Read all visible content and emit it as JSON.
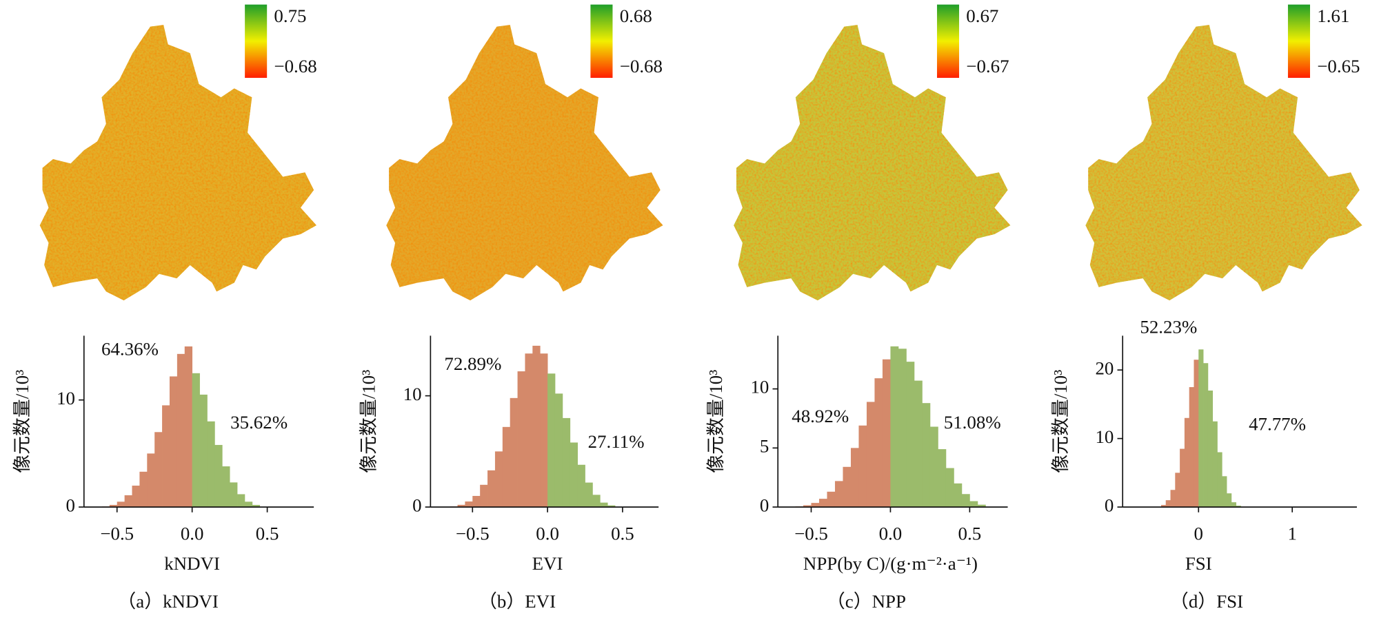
{
  "chart_data": [
    {
      "type": "histogram",
      "caption": "（a）kNDVI",
      "xlabel": "kNDVI",
      "ylabel": "像元数量/10³",
      "annotations": [
        "64.36%",
        "35.62%"
      ],
      "bins": [
        -0.6,
        -0.55,
        -0.5,
        -0.45,
        -0.4,
        -0.35,
        -0.3,
        -0.25,
        -0.2,
        -0.15,
        -0.1,
        -0.05,
        0,
        0.05,
        0.1,
        0.15,
        0.2,
        0.25,
        0.3,
        0.35,
        0.4,
        0.45
      ],
      "values": [
        0.05,
        0.2,
        0.5,
        1.1,
        2.0,
        3.3,
        5.0,
        7.0,
        9.5,
        12.2,
        14.3,
        15.0,
        12.5,
        10.5,
        8.0,
        5.8,
        3.8,
        2.3,
        1.2,
        0.5,
        0.2
      ],
      "colors": [
        "#d4896a",
        "#9bbb6b"
      ],
      "xlim": [
        -0.72,
        0.81
      ],
      "xticks": [
        {
          "value": -0.5,
          "label": "−0.5"
        },
        {
          "value": 0,
          "label": "0.0"
        },
        0.5
      ],
      "ylim": [
        0,
        16
      ],
      "yticks": [
        0,
        10
      ],
      "colorbar": {
        "ticks": [
          0.75,
          {
            "value": -0.68,
            "label": "−0.68"
          }
        ],
        "colors": [
          "#1f9e2a",
          "#f2ef00",
          "#ff1e00"
        ]
      }
    },
    {
      "type": "histogram",
      "caption": "（b）EVI",
      "xlabel": "EVI",
      "ylabel": "像元数量/10³",
      "annotations": [
        "72.89%",
        "27.11%"
      ],
      "bins": [
        -0.65,
        -0.6,
        -0.55,
        -0.5,
        -0.45,
        -0.4,
        -0.35,
        -0.3,
        -0.25,
        -0.2,
        -0.15,
        -0.1,
        -0.05,
        0,
        0.05,
        0.1,
        0.15,
        0.2,
        0.25,
        0.3,
        0.35,
        0.4,
        0.45
      ],
      "values": [
        0.05,
        0.2,
        0.5,
        1.0,
        2.0,
        3.3,
        5.0,
        7.2,
        9.8,
        12.2,
        13.8,
        14.5,
        13.8,
        12.0,
        10.2,
        8.0,
        5.8,
        3.8,
        2.2,
        1.1,
        0.4,
        0.15
      ],
      "colors": [
        "#d4896a",
        "#9bbb6b"
      ],
      "xlim": [
        -0.78,
        0.74
      ],
      "xticks": [
        {
          "value": -0.5,
          "label": "−0.5"
        },
        {
          "value": 0,
          "label": "0.0"
        },
        0.5
      ],
      "ylim": [
        0,
        15.4
      ],
      "yticks": [
        0,
        10
      ],
      "colorbar": {
        "ticks": [
          0.68,
          {
            "value": -0.68,
            "label": "−0.68"
          }
        ],
        "colors": [
          "#1f9e2a",
          "#f2ef00",
          "#ff1e00"
        ]
      }
    },
    {
      "type": "histogram",
      "caption": "（c）NPP",
      "xlabel": "NPP(by C)/(g·m⁻²·a⁻¹)",
      "ylabel": "像元数量/10³",
      "annotations": [
        "48.92%",
        "51.08%"
      ],
      "bins": [
        -0.6,
        -0.55,
        -0.5,
        -0.45,
        -0.4,
        -0.35,
        -0.3,
        -0.25,
        -0.2,
        -0.15,
        -0.1,
        -0.05,
        0,
        0.05,
        0.1,
        0.15,
        0.2,
        0.25,
        0.3,
        0.35,
        0.4,
        0.45,
        0.5,
        0.55,
        0.6
      ],
      "values": [
        0.05,
        0.15,
        0.35,
        0.7,
        1.3,
        2.2,
        3.4,
        5.0,
        6.9,
        8.9,
        10.9,
        12.5,
        13.6,
        13.4,
        12.3,
        10.7,
        8.8,
        6.8,
        4.9,
        3.3,
        2.0,
        1.1,
        0.5,
        0.2
      ],
      "colors": [
        "#d4896a",
        "#9bbb6b"
      ],
      "xlim": [
        -0.71,
        0.74
      ],
      "xticks": [
        {
          "value": -0.5,
          "label": "−0.5"
        },
        {
          "value": 0,
          "label": "0.0"
        },
        0.5
      ],
      "ylim": [
        0,
        14.5
      ],
      "yticks": [
        0,
        5,
        10
      ],
      "colorbar": {
        "ticks": [
          0.67,
          {
            "value": -0.67,
            "label": "−0.67"
          }
        ],
        "colors": [
          "#1f9e2a",
          "#f2ef00",
          "#ff1e00"
        ]
      }
    },
    {
      "type": "histogram",
      "caption": "（d）FSI",
      "xlabel": "FSI",
      "ylabel": "像元数量/10³",
      "annotations": [
        "52.23%",
        "47.77%"
      ],
      "bins": [
        -0.45,
        -0.4,
        -0.35,
        -0.3,
        -0.25,
        -0.2,
        -0.15,
        -0.1,
        -0.05,
        0,
        0.05,
        0.1,
        0.15,
        0.2,
        0.25,
        0.3,
        0.35,
        0.4,
        0.45
      ],
      "values": [
        0.05,
        0.3,
        1.0,
        2.5,
        5.0,
        8.5,
        13.0,
        17.5,
        21.5,
        23.0,
        21.0,
        17.0,
        12.5,
        8.0,
        4.5,
        2.0,
        0.7,
        0.2
      ],
      "colors": [
        "#d4896a",
        "#9bbb6b"
      ],
      "xlim": [
        -0.81,
        1.69
      ],
      "xticks": [
        0,
        1
      ],
      "ylim": [
        0,
        25
      ],
      "yticks": [
        0,
        10,
        20
      ],
      "colorbar": {
        "ticks": [
          1.61,
          {
            "value": -0.65,
            "label": "−0.65"
          }
        ],
        "colors": [
          "#1f9e2a",
          "#f2ef00",
          "#ff1e00"
        ]
      }
    }
  ]
}
